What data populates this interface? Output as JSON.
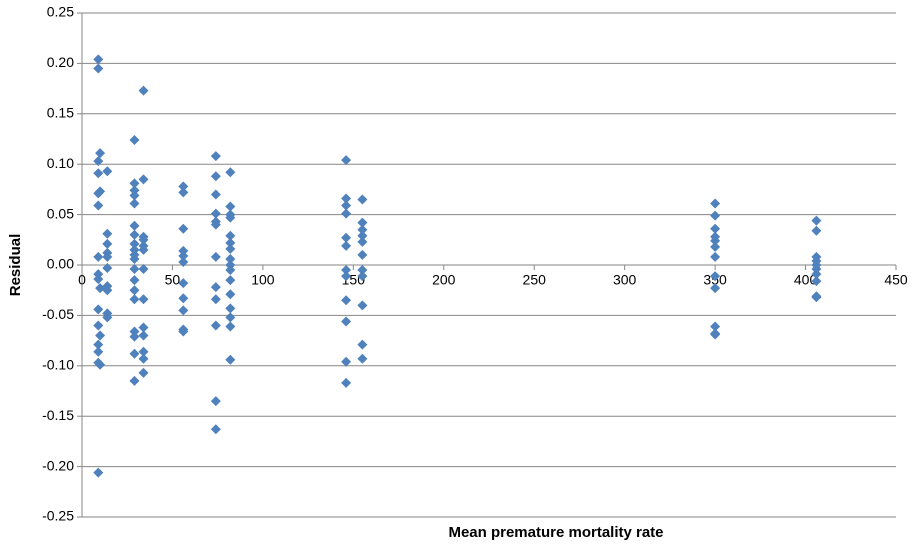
{
  "chart_data": {
    "type": "scatter",
    "x_label": "Mean premature mortality rate",
    "y_label": "Residual",
    "color": "#4f81bd",
    "grid": true,
    "xlim": [
      0,
      450
    ],
    "xticks": [
      0,
      50,
      100,
      150,
      200,
      250,
      300,
      350,
      400,
      450
    ],
    "ylim": [
      -0.25,
      0.25
    ],
    "yticks": [
      {
        "value": 0.25,
        "label": "0.25"
      },
      {
        "value": 0.2,
        "label": "0.20"
      },
      {
        "value": 0.15,
        "label": "0.15"
      },
      {
        "value": 0.1,
        "label": "0.10"
      },
      {
        "value": 0.05,
        "label": "0.05"
      },
      {
        "value": 0,
        "label": "0.00"
      },
      {
        "value": -0.05,
        "label": "-0.05"
      },
      {
        "value": -0.1,
        "label": "-0.10"
      },
      {
        "value": -0.15,
        "label": "-0.15"
      },
      {
        "value": -0.2,
        "label": "-0.20"
      },
      {
        "value": -0.25,
        "label": "-0.25"
      }
    ],
    "x": [
      9,
      9,
      10,
      9,
      9,
      10,
      9,
      9,
      9,
      9,
      9,
      10,
      9,
      9,
      10,
      9,
      9,
      9,
      10,
      9,
      14,
      14,
      14,
      14,
      14,
      14,
      14,
      14,
      14,
      14,
      29,
      29,
      29,
      29,
      29,
      29,
      29,
      29,
      29,
      29,
      29,
      29,
      29,
      29,
      29,
      29,
      29,
      29,
      29,
      34,
      34,
      34,
      34,
      34,
      34,
      34,
      34,
      34,
      34,
      34,
      34,
      34,
      56,
      56,
      56,
      56,
      56,
      56,
      56,
      56,
      56,
      56,
      56,
      74,
      74,
      74,
      74,
      74,
      74,
      74,
      74,
      74,
      74,
      74,
      74,
      82,
      82,
      82,
      82,
      82,
      82,
      82,
      82,
      82,
      82,
      82,
      82,
      82,
      82,
      82,
      82,
      146,
      146,
      146,
      146,
      146,
      146,
      146,
      146,
      146,
      146,
      146,
      146,
      155,
      155,
      155,
      155,
      155,
      155,
      155,
      155,
      155,
      155,
      155,
      350,
      350,
      350,
      350,
      350,
      350,
      350,
      350,
      350,
      350,
      350,
      350,
      406,
      406,
      406,
      406,
      406,
      406,
      406,
      406,
      406,
      406
    ],
    "values": [
      0.204,
      0.195,
      0.111,
      0.103,
      0.091,
      0.073,
      0.071,
      0.059,
      0.008,
      -0.009,
      -0.014,
      -0.023,
      -0.044,
      -0.06,
      -0.07,
      -0.079,
      -0.086,
      -0.097,
      -0.099,
      -0.206,
      0.093,
      0.031,
      0.021,
      0.012,
      0.008,
      -0.003,
      -0.021,
      -0.025,
      -0.048,
      -0.052,
      0.124,
      0.081,
      0.074,
      0.069,
      0.061,
      0.039,
      0.03,
      0.021,
      0.015,
      0.01,
      0.006,
      -0.004,
      -0.015,
      -0.025,
      -0.034,
      -0.066,
      -0.071,
      -0.088,
      -0.115,
      0.173,
      0.085,
      0.028,
      0.025,
      0.019,
      0.015,
      -0.004,
      -0.034,
      -0.062,
      -0.07,
      -0.086,
      -0.093,
      -0.107,
      0.078,
      0.072,
      0.036,
      0.014,
      0.009,
      0.003,
      -0.018,
      -0.033,
      -0.045,
      -0.064,
      -0.066,
      0.108,
      0.088,
      0.07,
      0.051,
      0.043,
      0.04,
      0.008,
      -0.022,
      -0.034,
      -0.06,
      -0.135,
      -0.163,
      0.092,
      0.058,
      0.05,
      0.047,
      0.029,
      0.022,
      0.016,
      0.006,
      0.0,
      -0.005,
      -0.015,
      -0.029,
      -0.043,
      -0.052,
      -0.061,
      -0.094,
      0.104,
      0.066,
      0.059,
      0.051,
      0.027,
      0.019,
      -0.005,
      -0.011,
      -0.035,
      -0.056,
      -0.096,
      -0.117,
      0.065,
      0.042,
      0.035,
      0.029,
      0.023,
      0.01,
      -0.005,
      -0.011,
      -0.04,
      -0.079,
      -0.093,
      0.061,
      0.049,
      0.036,
      0.028,
      0.024,
      0.018,
      0.008,
      -0.011,
      -0.023,
      -0.061,
      -0.068,
      -0.069,
      0.044,
      0.034,
      0.008,
      0.004,
      0.0,
      -0.004,
      -0.009,
      -0.016,
      -0.031,
      -0.032
    ]
  }
}
